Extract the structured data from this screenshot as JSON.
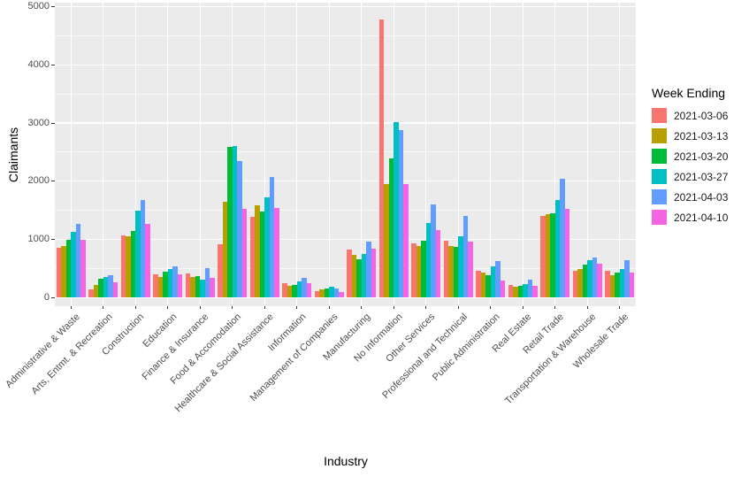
{
  "figure": {
    "background": "#FFFFFF",
    "panel_bg": "#EBEBEB",
    "gridline_color": "#FFFFFF",
    "tick_color": "#333333",
    "tick_label_color": "#4D4D4D"
  },
  "chart_data": {
    "type": "bar",
    "title": "",
    "xlabel": "Industry",
    "ylabel": "Claimants",
    "legend_title": "Week Ending",
    "legend_position": "right",
    "grid": true,
    "ylim": [
      0,
      5000
    ],
    "yticks": [
      0,
      1000,
      2000,
      3000,
      4000,
      5000
    ],
    "ytick_minor_step": 500,
    "categories": [
      "Administrative & Waste",
      "Arts, Entmt. & Recreation",
      "Construction",
      "Education",
      "Finance & Insurance",
      "Food & Accomodation",
      "Healthcare & Social Assistance",
      "Information",
      "Management of Companies",
      "Manufacturing",
      "No Information",
      "Other Services",
      "Professional and Technical",
      "Public Administration",
      "Real Estate",
      "Retail Trade",
      "Transportation & Warehouse",
      "Wholesale Trade"
    ],
    "series": [
      {
        "name": "2021-03-06",
        "color": "#F8766D",
        "values": [
          850,
          140,
          1065,
          385,
          405,
          910,
          1380,
          240,
          110,
          820,
          4780,
          925,
          965,
          450,
          207,
          1400,
          460,
          455
        ]
      },
      {
        "name": "2021-03-13",
        "color": "#B79F00",
        "values": [
          880,
          205,
          1050,
          350,
          350,
          1640,
          1585,
          200,
          135,
          730,
          1940,
          875,
          885,
          415,
          177,
          1420,
          480,
          375
        ]
      },
      {
        "name": "2021-03-20",
        "color": "#00BA38",
        "values": [
          990,
          320,
          1140,
          440,
          360,
          2590,
          1475,
          212,
          150,
          655,
          2390,
          975,
          870,
          380,
          197,
          1440,
          560,
          425
        ]
      },
      {
        "name": "2021-03-27",
        "color": "#00BFC4",
        "values": [
          1120,
          345,
          1485,
          480,
          300,
          2605,
          1710,
          273,
          175,
          740,
          3010,
          1270,
          1050,
          530,
          232,
          1670,
          630,
          485
        ]
      },
      {
        "name": "2021-04-03",
        "color": "#619CFF",
        "values": [
          1255,
          370,
          1665,
          530,
          500,
          2340,
          2070,
          338,
          155,
          955,
          2870,
          1600,
          1400,
          620,
          308,
          2040,
          680,
          640
        ]
      },
      {
        "name": "2021-04-10",
        "color": "#F564E2",
        "values": [
          980,
          255,
          1255,
          395,
          330,
          1515,
          1530,
          237,
          95,
          840,
          1950,
          1160,
          960,
          280,
          187,
          1520,
          580,
          420
        ]
      }
    ]
  }
}
